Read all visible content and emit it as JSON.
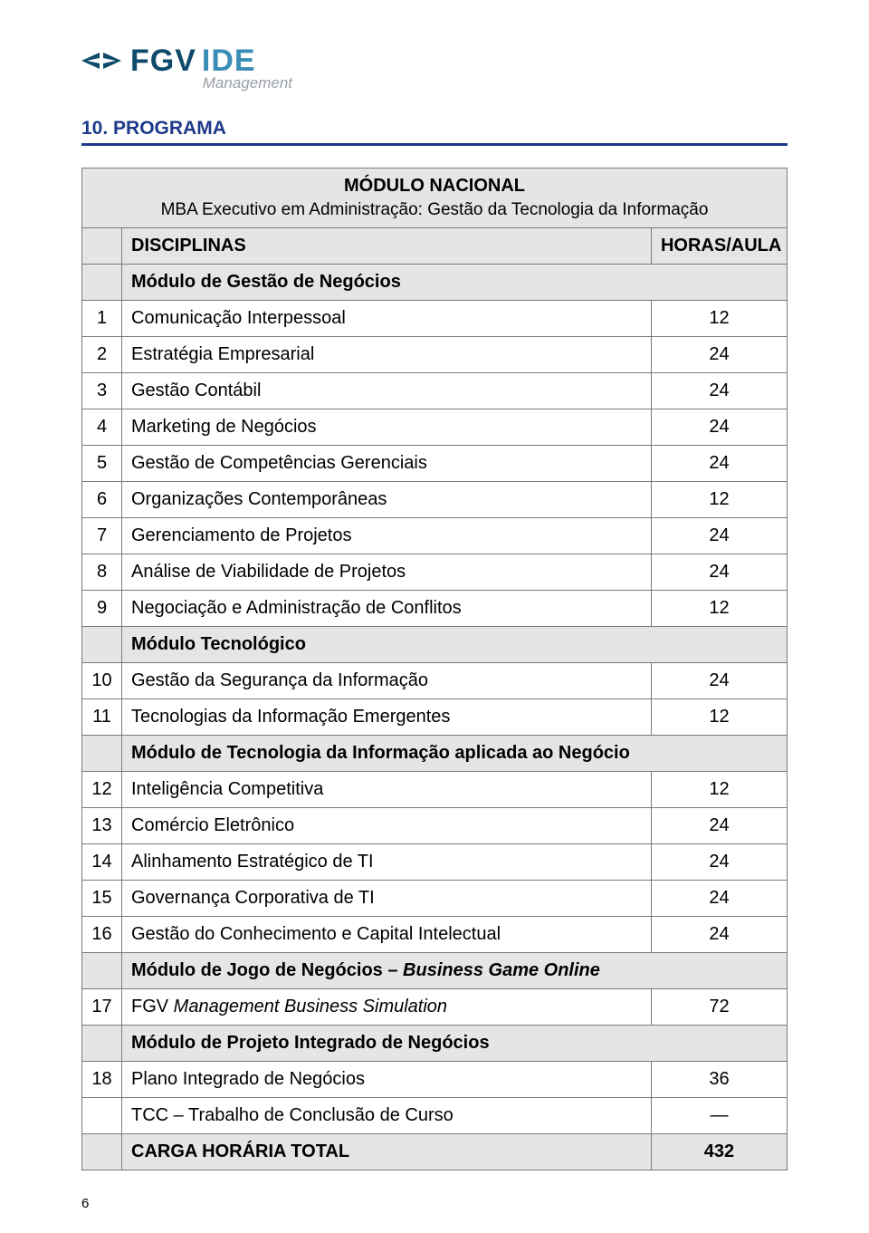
{
  "logo": {
    "fgv": "FGV",
    "ide": "IDE",
    "subtitle": "Management",
    "mark_color": "#0e4a6b"
  },
  "section_heading": "10. PROGRAMA",
  "module_title": "MÓDULO NACIONAL",
  "module_subtitle": "MBA Executivo em Administração: Gestão da Tecnologia da Informação",
  "col_disciplinas": "DISCIPLINAS",
  "col_horas": "HORAS/AULA",
  "groups": [
    {
      "header": "Módulo de Gestão de Negócios",
      "header_italic": "",
      "rows": [
        {
          "n": "1",
          "name": "Comunicação Interpessoal",
          "h": "12"
        },
        {
          "n": "2",
          "name": "Estratégia Empresarial",
          "h": "24"
        },
        {
          "n": "3",
          "name": "Gestão Contábil",
          "h": "24"
        },
        {
          "n": "4",
          "name": "Marketing de Negócios",
          "h": "24"
        },
        {
          "n": "5",
          "name": "Gestão de Competências Gerenciais",
          "h": "24"
        },
        {
          "n": "6",
          "name": "Organizações Contemporâneas",
          "h": "12"
        },
        {
          "n": "7",
          "name": "Gerenciamento de Projetos",
          "h": "24"
        },
        {
          "n": "8",
          "name": "Análise de Viabilidade de Projetos",
          "h": "24"
        },
        {
          "n": "9",
          "name": "Negociação e Administração de Conflitos",
          "h": "12"
        }
      ]
    },
    {
      "header": "Módulo Tecnológico",
      "header_italic": "",
      "rows": [
        {
          "n": "10",
          "name": "Gestão da Segurança da Informação",
          "h": "24"
        },
        {
          "n": "11",
          "name": "Tecnologias da Informação Emergentes",
          "h": "12"
        }
      ]
    },
    {
      "header": "Módulo de Tecnologia da Informação aplicada ao Negócio",
      "header_italic": "",
      "rows": [
        {
          "n": "12",
          "name": "Inteligência Competitiva",
          "h": "12"
        },
        {
          "n": "13",
          "name": "Comércio Eletrônico",
          "h": "24"
        },
        {
          "n": "14",
          "name": "Alinhamento Estratégico de TI",
          "h": "24"
        },
        {
          "n": "15",
          "name": "Governança Corporativa de TI",
          "h": "24"
        },
        {
          "n": "16",
          "name": "Gestão do Conhecimento e Capital Intelectual",
          "h": "24"
        }
      ]
    },
    {
      "header": "Módulo de Jogo de Negócios – ",
      "header_italic": "Business Game Online",
      "rows": [
        {
          "n": "17",
          "name_prefix": "FGV ",
          "name_italic": "Management Business Simulation",
          "h": "72"
        }
      ]
    },
    {
      "header": "Módulo de Projeto Integrado de Negócios",
      "header_italic": "",
      "rows": [
        {
          "n": "18",
          "name": "Plano Integrado de Negócios",
          "h": "36"
        },
        {
          "n": "",
          "name": "TCC – Trabalho de Conclusão de Curso",
          "h": "—"
        }
      ]
    }
  ],
  "total_label": "CARGA HORÁRIA TOTAL",
  "total_value": "432",
  "page_number": "6",
  "colors": {
    "heading": "#1d3a8a",
    "border": "#7a7a7a",
    "shade": "#e5e5e5"
  }
}
